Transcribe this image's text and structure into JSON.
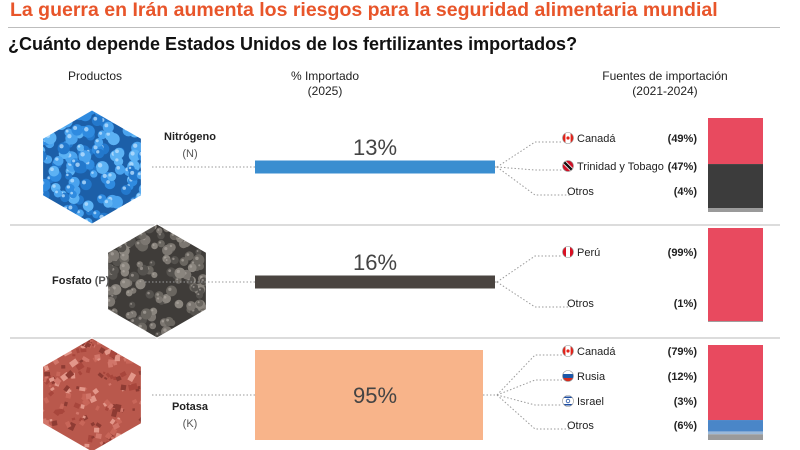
{
  "headline": "La guerra en Irán aumenta los riesgos para la seguridad alimentaria mundial",
  "subtitle": "¿Cuánto depende Estados Unidos de los fertilizantes importados?",
  "columns": {
    "products": "Productos",
    "imported_l1": "% Importado",
    "imported_l2": "(2025)",
    "sources_l1": "Fuentes de importación",
    "sources_l2": "(2021-2024)"
  },
  "colors": {
    "headline": "#e8552a",
    "canada": "#e84a5f",
    "trinidad": "#3c3c3c",
    "otros": "#9a9a9a",
    "rusia": "#4a86c8",
    "israel": "#9ab8d8"
  },
  "chart_data": {
    "type": "bar",
    "imported_scale": [
      0,
      100
    ],
    "products": [
      {
        "name": "Nitrógeno",
        "symbol": "(N)",
        "imported_pct": 13,
        "imported_label": "13%",
        "bar_color": "#3a8ed0",
        "texture": "blue-granules",
        "sources": [
          {
            "name": "Canadá",
            "pct": 49,
            "pct_label": "(49%)",
            "flag": "ca",
            "color": "#e84a5f"
          },
          {
            "name": "Trinidad y Tobago",
            "pct": 47,
            "pct_label": "(47%)",
            "flag": "tt",
            "color": "#3c3c3c"
          },
          {
            "name": "Otros",
            "pct": 4,
            "pct_label": "(4%)",
            "flag": "",
            "color": "#9a9a9a"
          }
        ]
      },
      {
        "name": "Fosfato",
        "symbol": "(P)",
        "imported_pct": 16,
        "imported_label": "16%",
        "bar_color": "#4a4440",
        "texture": "grey-pellets",
        "sources": [
          {
            "name": "Perú",
            "pct": 99,
            "pct_label": "(99%)",
            "flag": "pe",
            "color": "#e84a5f"
          },
          {
            "name": "Otros",
            "pct": 1,
            "pct_label": "(1%)",
            "flag": "",
            "color": "#9a9a9a"
          }
        ]
      },
      {
        "name": "Potasa",
        "symbol": "(K)",
        "imported_pct": 95,
        "imported_label": "95%",
        "bar_color": "#f8b48a",
        "texture": "red-crystals",
        "sources": [
          {
            "name": "Canadá",
            "pct": 79,
            "pct_label": "(79%)",
            "flag": "ca",
            "color": "#e84a5f"
          },
          {
            "name": "Rusia",
            "pct": 12,
            "pct_label": "(12%)",
            "flag": "ru",
            "color": "#4a86c8"
          },
          {
            "name": "Israel",
            "pct": 3,
            "pct_label": "(3%)",
            "flag": "il",
            "color": "#9ab8d8"
          },
          {
            "name": "Otros",
            "pct": 6,
            "pct_label": "(6%)",
            "flag": "",
            "color": "#9a9a9a"
          }
        ]
      }
    ]
  }
}
